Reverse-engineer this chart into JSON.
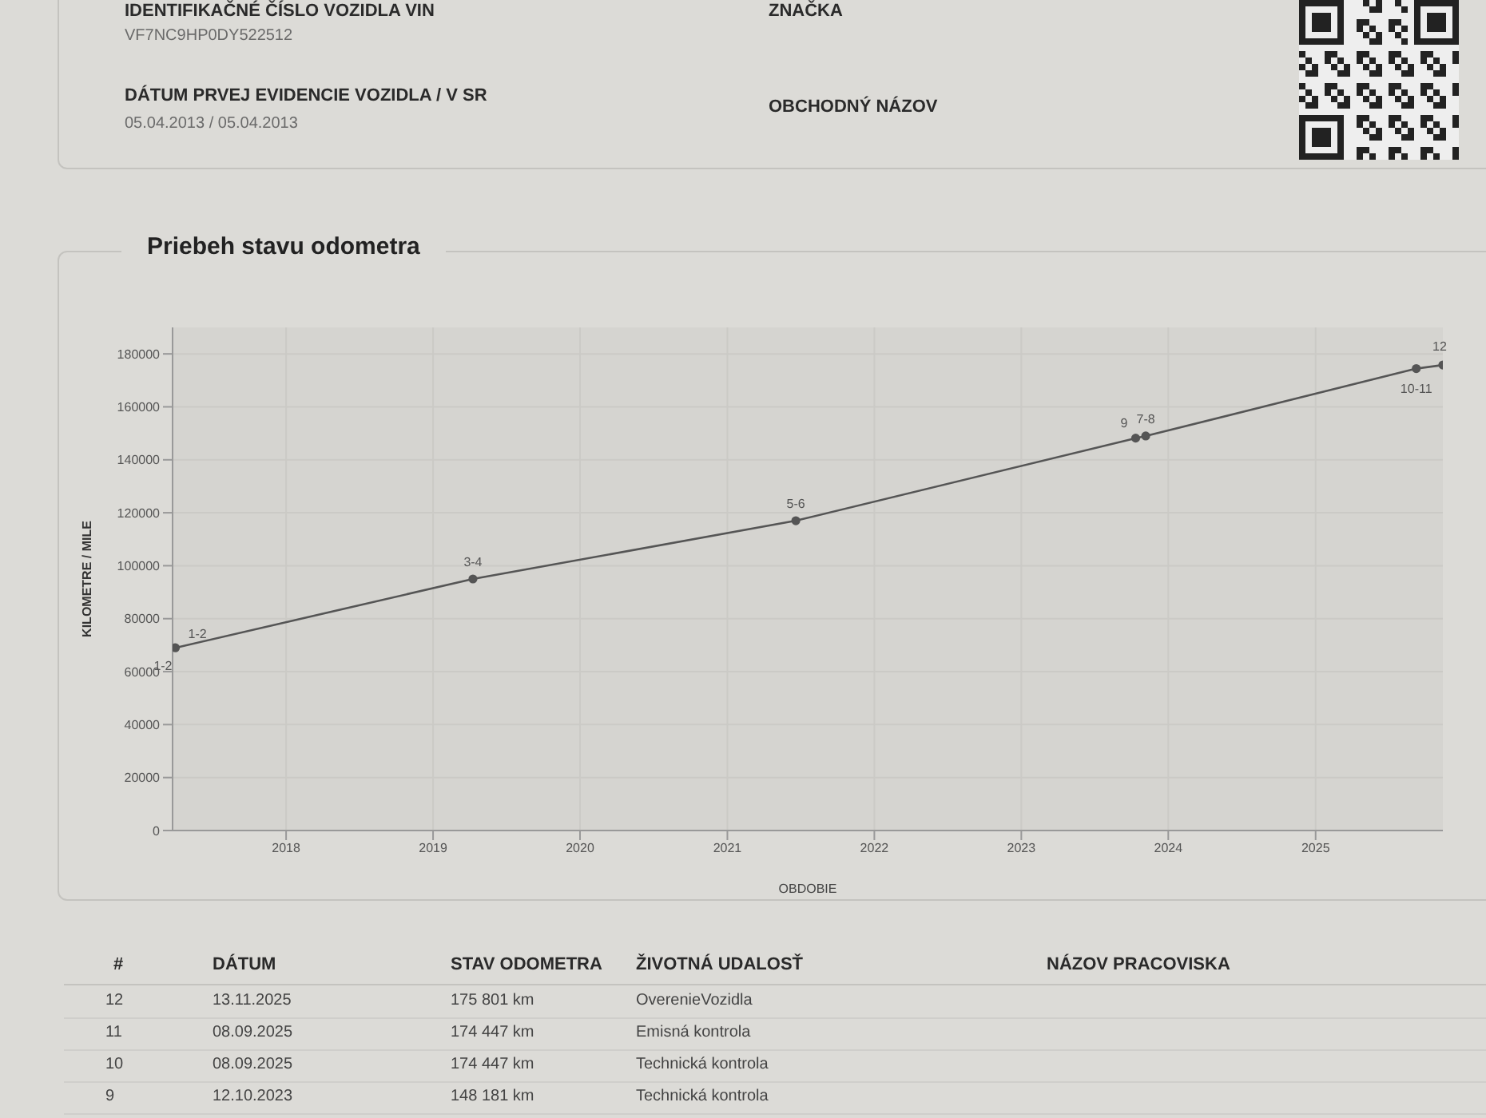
{
  "chart_data": {
    "type": "line",
    "title": "Priebeh stavu odometra",
    "xlabel": "OBDOBIE",
    "ylabel": "KILOMETRE / MILE",
    "x": [
      "2017-04-01",
      "2019-04-10",
      "2021-06-20",
      "2023-10-12",
      "2023-11-06",
      "2025-09-08",
      "2025-11-13"
    ],
    "series": [
      {
        "color": "#555555",
        "values": [
          69000,
          95000,
          117000,
          148181,
          149000,
          174447,
          175801
        ]
      }
    ],
    "xlim": [
      "2017-03-25",
      "2025-11-13"
    ],
    "xticks": [
      "2018",
      "2019",
      "2020",
      "2021",
      "2022",
      "2023",
      "2024",
      "2025"
    ],
    "ylim": [
      0,
      190000
    ],
    "yticks": [
      0,
      20000,
      40000,
      60000,
      80000,
      100000,
      120000,
      140000,
      160000,
      180000
    ],
    "grid": true,
    "marker": "circle",
    "annotations": [
      "IDENTIFIKAČNÉ ČÍSLO VOZIDLA VIN",
      "VF7NC9HP0DY522512",
      "DÁTUM PRVEJ EVIDENCIE VOZIDLA / V SR",
      "05.04.2013 / 05.04.2013",
      "ZNAČKA",
      "OBCHODNÝ NÁZOV",
      "#",
      "DÁTUM",
      "STAV ODOMETRA",
      "ŽIVOTNÁ UDALOSŤ",
      "NÁZOV PRACOVISKA",
      "12",
      "13.11.2025",
      "175 801 km",
      "OverenieVozidla",
      "11",
      "08.09.2025",
      "174 447 km",
      "Emisná kontrola",
      "10",
      "08.09.2025",
      "174 447 km",
      "Technická kontrola",
      "9",
      "12.10.2023",
      "148 181 km",
      "Technická kontrola",
      {
        "text": "1-2",
        "x": "2017-04-01",
        "y": 69000
      },
      {
        "text": "1-2",
        "x": "2017-04-01",
        "y": 69000
      },
      {
        "text": "3-4",
        "x": "2019-04-10",
        "y": 95000
      },
      {
        "text": "5-6",
        "x": "2021-06-20",
        "y": 117000
      },
      {
        "text": "9",
        "x": "2023-10-12",
        "y": 148181
      },
      {
        "text": "7-8",
        "x": "2023-11-06",
        "y": 149000
      },
      {
        "text": "10-11",
        "x": "2025-09-08",
        "y": 174447
      },
      {
        "text": "12",
        "x": "2025-11-13",
        "y": 175801
      }
    ]
  }
}
